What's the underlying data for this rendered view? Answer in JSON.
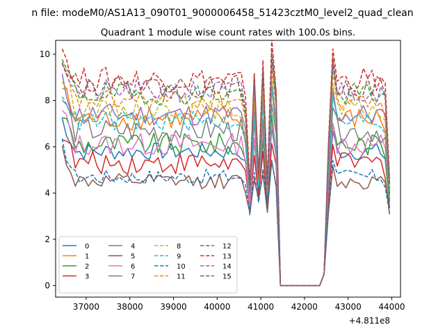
{
  "chart_data": {
    "type": "line",
    "suptitle": "n file: modeM0/AS1A13_090T01_9000006458_51423cztM0_level2_quad_clean",
    "title": "Quadrant 1 module wise count rates with 100.0s bins.",
    "xlabel": "",
    "ylabel": "",
    "x_offset_label": "+4.811e8",
    "xlim": [
      36300,
      44200
    ],
    "ylim": [
      -0.5,
      10.6
    ],
    "xticks": [
      37000,
      38000,
      39000,
      40000,
      41000,
      42000,
      43000,
      44000
    ],
    "xtick_labels": [
      "37000",
      "38000",
      "39000",
      "40000",
      "41000",
      "42000",
      "43000",
      "44000"
    ],
    "yticks": [
      0,
      2,
      4,
      6,
      8,
      10
    ],
    "ytick_labels": [
      "0",
      "2",
      "4",
      "6",
      "8",
      "10"
    ],
    "legend_position": "lower-left",
    "legend_columns": 4,
    "grid": false,
    "x_start": 36450,
    "x_step": 100,
    "gap_start": 41400,
    "gap_end": 42400,
    "x_end": 43950,
    "series": [
      {
        "name": "0",
        "color": "#1f77b4",
        "dash": "solid",
        "base": 5.8,
        "wiggle": 0.35,
        "dip_to": 3.6
      },
      {
        "name": "1",
        "color": "#ff7f0e",
        "dash": "solid",
        "base": 7.2,
        "wiggle": 0.45,
        "dip_to": 3.9
      },
      {
        "name": "2",
        "color": "#2ca02c",
        "dash": "solid",
        "base": 6.1,
        "wiggle": 0.45,
        "dip_to": 3.4
      },
      {
        "name": "3",
        "color": "#d62728",
        "dash": "solid",
        "base": 5.3,
        "wiggle": 0.45,
        "dip_to": 3.2
      },
      {
        "name": "4",
        "color": "#9467bd",
        "dash": "solid",
        "base": 7.4,
        "wiggle": 0.45,
        "dip_to": 3.8
      },
      {
        "name": "5",
        "color": "#8c564b",
        "dash": "solid",
        "base": 4.5,
        "wiggle": 0.3,
        "dip_to": 3.0
      },
      {
        "name": "6",
        "color": "#e377c2",
        "dash": "solid",
        "base": 6.1,
        "wiggle": 0.45,
        "dip_to": 3.5
      },
      {
        "name": "7",
        "color": "#7f7f7f",
        "dash": "solid",
        "base": 6.7,
        "wiggle": 0.5,
        "dip_to": 3.7
      },
      {
        "name": "8",
        "color": "#bcbd22",
        "dash": "dashed",
        "base": 7.6,
        "wiggle": 0.4,
        "dip_to": 3.9
      },
      {
        "name": "9",
        "color": "#17becf",
        "dash": "dashed",
        "base": 7.1,
        "wiggle": 0.4,
        "dip_to": 3.8
      },
      {
        "name": "10",
        "color": "#1f77b4",
        "dash": "dashed",
        "base": 4.7,
        "wiggle": 0.3,
        "dip_to": 3.1
      },
      {
        "name": "11",
        "color": "#ff7f0e",
        "dash": "dashed",
        "base": 8.0,
        "wiggle": 0.4,
        "dip_to": 4.0
      },
      {
        "name": "12",
        "color": "#2ca02c",
        "dash": "dashed",
        "base": 8.3,
        "wiggle": 0.45,
        "dip_to": 4.1
      },
      {
        "name": "13",
        "color": "#d62728",
        "dash": "dashed",
        "base": 8.9,
        "wiggle": 0.5,
        "dip_to": 4.2
      },
      {
        "name": "14",
        "color": "#9467bd",
        "dash": "dashed",
        "base": 8.4,
        "wiggle": 0.45,
        "dip_to": 4.0
      },
      {
        "name": "15",
        "color": "#8c564b",
        "dash": "dashed",
        "base": 8.6,
        "wiggle": 0.45,
        "dip_to": 4.1
      }
    ]
  }
}
